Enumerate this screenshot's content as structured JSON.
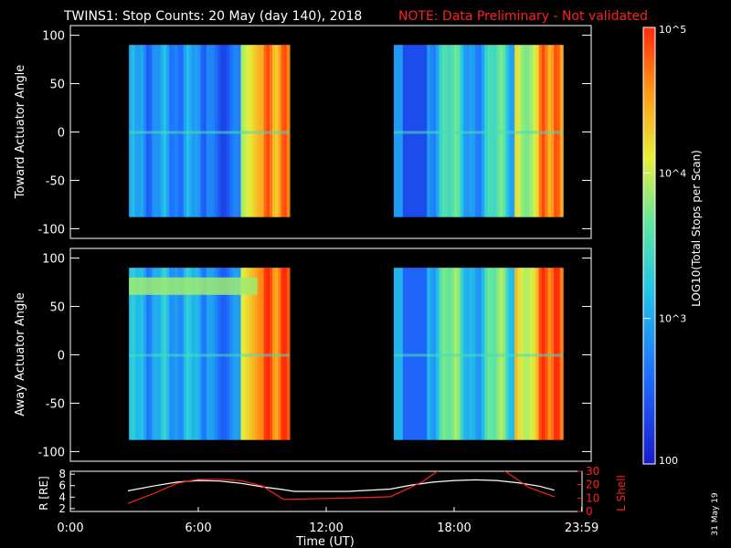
{
  "header": {
    "title": "TWINS1: Stop Counts: 20 May (day 140), 2018",
    "note": "NOTE: Data Preliminary - Not validated"
  },
  "footer": {
    "stamp": "31 May 19"
  },
  "colors": {
    "accent": "#ff0000",
    "background": "#000000",
    "frame": "#ffffff"
  },
  "colorbar": {
    "label": "LOG10(Total Stops per Scan)",
    "min": 100,
    "max": 100000,
    "ticks": [
      {
        "value": 100000,
        "label": "10^5"
      },
      {
        "value": 10000,
        "label": "10^4"
      },
      {
        "value": 1000,
        "label": "10^3"
      },
      {
        "value": 100,
        "label": "100"
      }
    ]
  },
  "chart_data": [
    {
      "type": "heatmap",
      "panel": "toward",
      "ylabel": "Toward Actuator Angle",
      "ylim": [
        -110,
        110
      ],
      "yticks": [
        100,
        50,
        0,
        -50,
        -100
      ],
      "xlim": [
        0,
        24
      ],
      "blocks": [
        {
          "x": [
            2.7,
            10.1
          ],
          "y": [
            -88,
            90
          ]
        },
        {
          "x": [
            14.9,
            22.7
          ],
          "y": [
            -88,
            90
          ]
        }
      ]
    },
    {
      "type": "heatmap",
      "panel": "away",
      "ylabel": "Away Actuator Angle",
      "ylim": [
        -110,
        110
      ],
      "yticks": [
        100,
        50,
        0,
        -50,
        -100
      ],
      "xlim": [
        0,
        24
      ],
      "blocks": [
        {
          "x": [
            2.7,
            10.1
          ],
          "y": [
            -88,
            90
          ]
        },
        {
          "x": [
            14.9,
            22.7
          ],
          "y": [
            -88,
            90
          ]
        }
      ]
    },
    {
      "type": "line",
      "panel": "orbit",
      "xlabel": "Time (UT)",
      "xlim": [
        0,
        24
      ],
      "xtick_labels": [
        "0:00",
        "6:00",
        "12:00",
        "18:00",
        "23:59"
      ],
      "xtick_values": [
        0,
        6,
        12,
        18,
        23.983
      ],
      "left_axis": {
        "label": "R [RE]",
        "ylim": [
          1.5,
          8.5
        ],
        "ticks": [
          2,
          4,
          6,
          8
        ]
      },
      "right_axis": {
        "label": "L Shell",
        "ylim": [
          0,
          30
        ],
        "ticks": [
          0,
          10,
          20,
          30
        ]
      },
      "series": [
        {
          "axis": "left",
          "color": "#ffffff",
          "x": [
            2.7,
            4,
            5,
            6,
            7,
            8,
            9,
            10,
            10.5,
            13,
            15,
            16,
            17,
            18,
            19,
            20,
            21,
            22,
            22.7
          ],
          "y": [
            5.1,
            6.0,
            6.6,
            6.9,
            6.8,
            6.4,
            5.8,
            5.3,
            5.0,
            5.0,
            5.4,
            6.1,
            6.6,
            6.9,
            7.0,
            6.9,
            6.5,
            5.9,
            5.2
          ]
        },
        {
          "axis": "right",
          "color": "#ff2020",
          "x": [
            2.7,
            4,
            5,
            6,
            7,
            8,
            9,
            10,
            13,
            15,
            16.5,
            17.3,
            20.3,
            21.5,
            22.7
          ],
          "y": [
            6,
            14,
            21,
            24,
            24,
            23,
            19,
            9,
            10,
            11,
            22,
            31,
            31,
            18,
            11
          ]
        }
      ]
    }
  ]
}
